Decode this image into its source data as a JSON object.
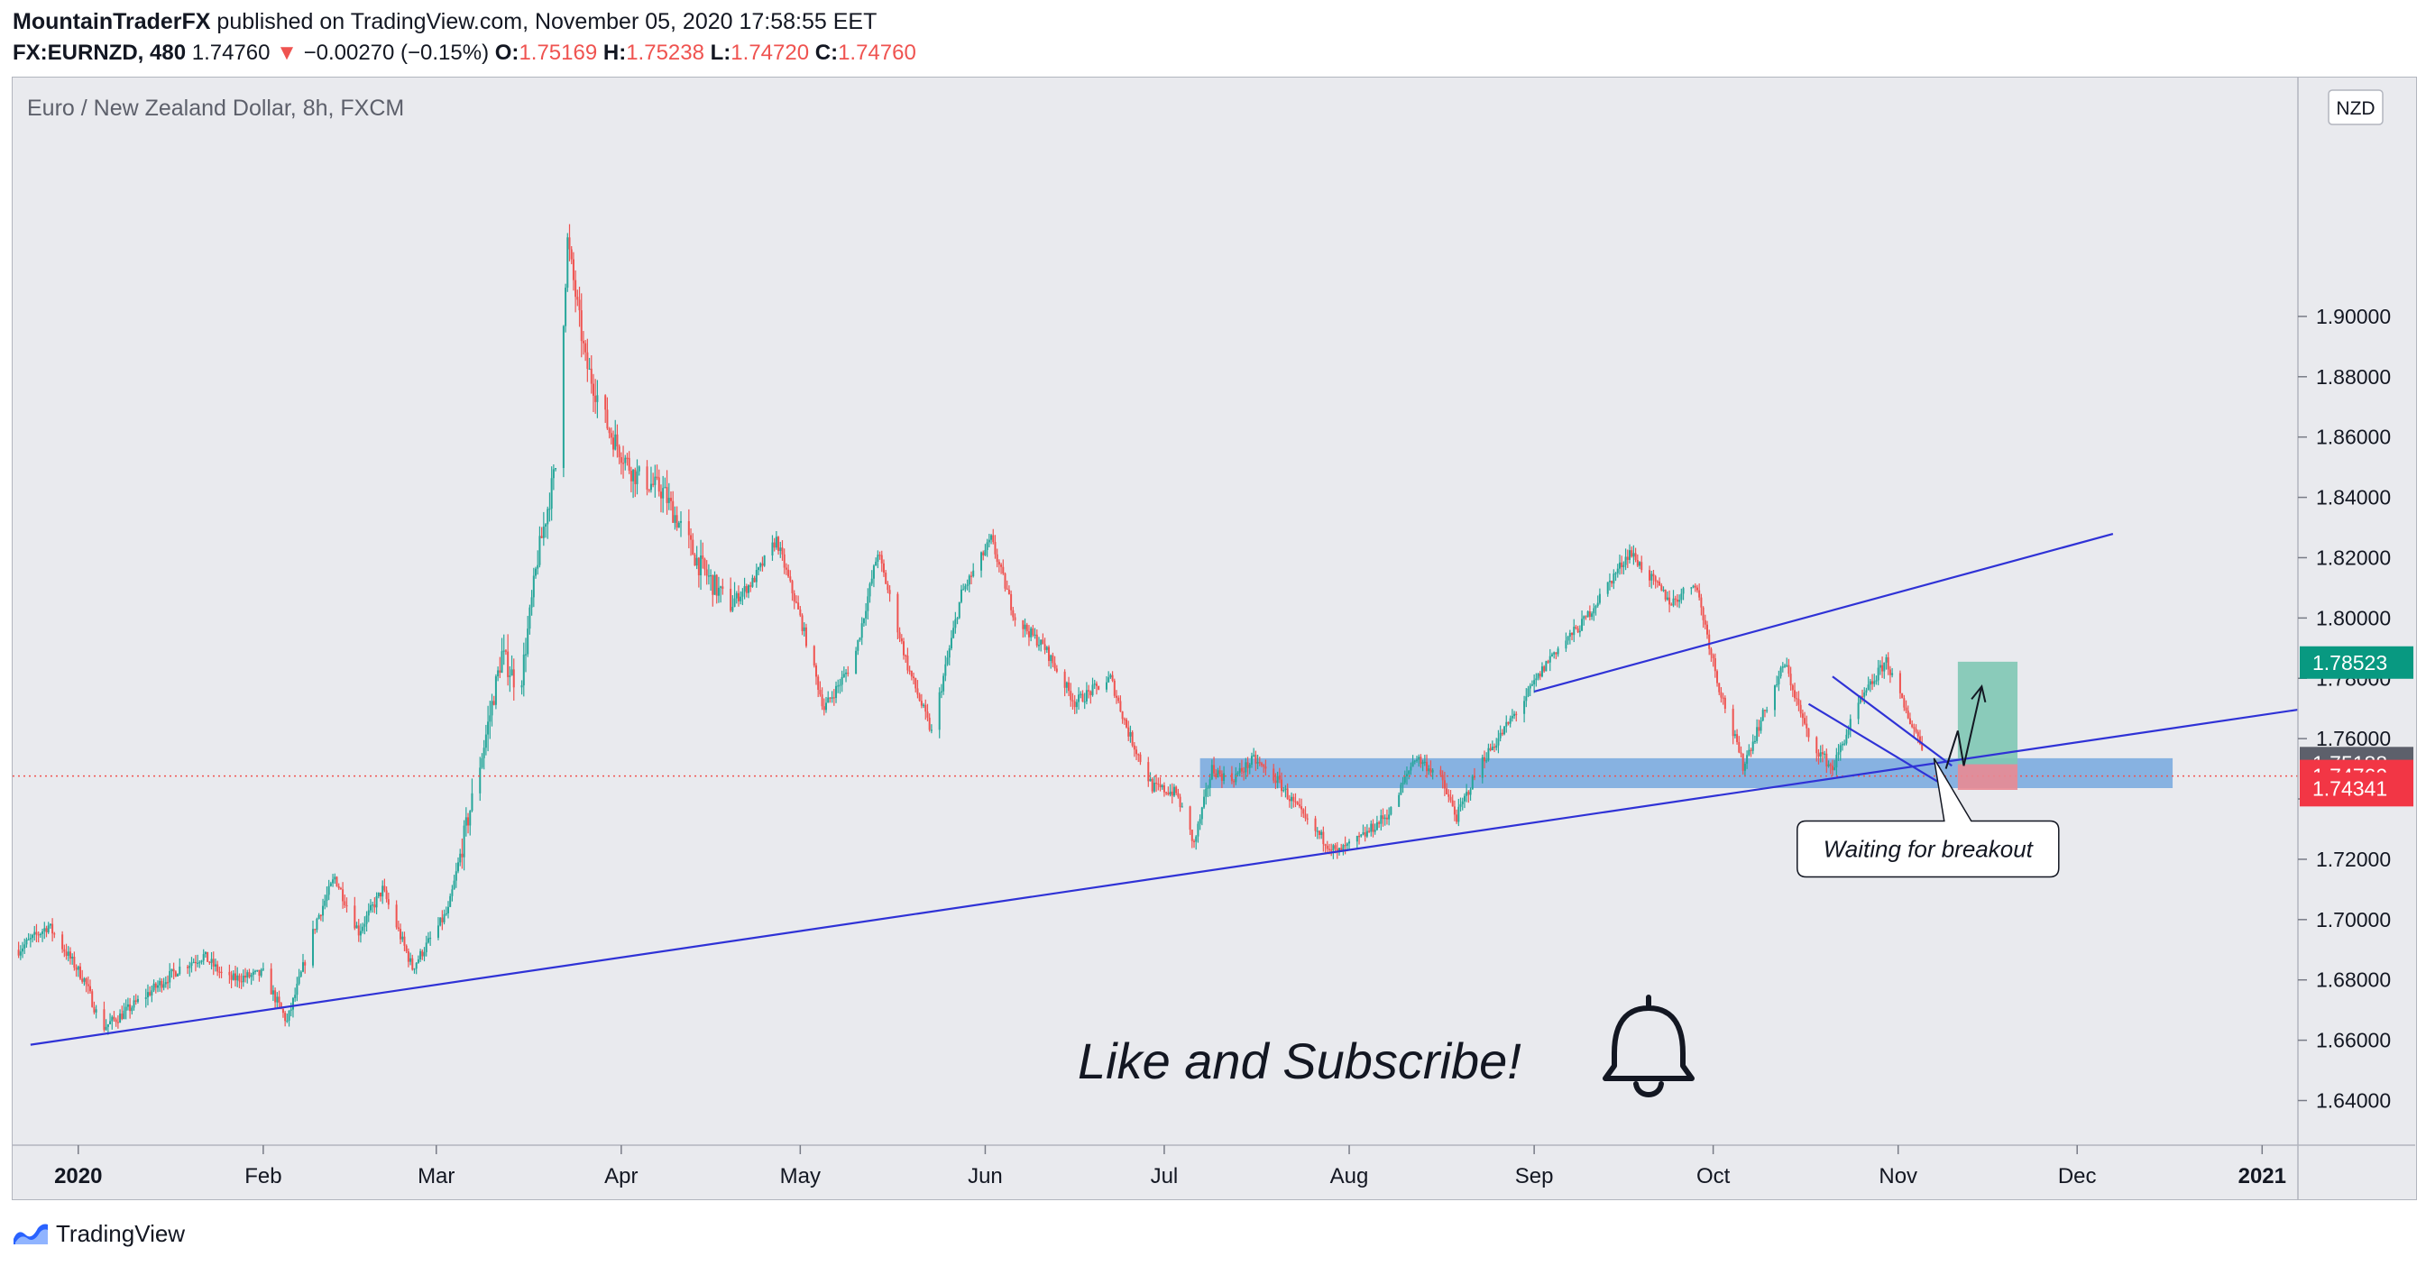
{
  "header": {
    "author": "MountainTraderFX",
    "published_text": "published on TradingView.com, November 05, 2020 17:58:55 EET",
    "symbol": "FX:EURNZD, 480",
    "last": "1.74760",
    "change_arrow": "▼",
    "change": "−0.00270 (−0.15%)",
    "open_label": "O:",
    "open": "1.75169",
    "high_label": "H:",
    "high": "1.75238",
    "low_label": "L:",
    "low": "1.74720",
    "close_label": "C:",
    "close": "1.74760"
  },
  "footer": {
    "brand": "TradingView",
    "logo_icon": "tradingview-logo-icon"
  },
  "chart_data": {
    "type": "candlestick",
    "title": "Euro / New Zealand Dollar, 8h, FXCM",
    "currency_badge": "NZD",
    "y_ticks": [
      "1.90000",
      "1.88000",
      "1.86000",
      "1.84000",
      "1.82000",
      "1.80000",
      "1.78000",
      "1.76000",
      "1.74000",
      "1.72000",
      "1.70000",
      "1.68000",
      "1.66000",
      "1.64000"
    ],
    "y_tick_values": [
      1.9,
      1.88,
      1.86,
      1.84,
      1.82,
      1.8,
      1.78,
      1.76,
      1.74,
      1.72,
      1.7,
      1.68,
      1.66,
      1.64
    ],
    "ylim": [
      1.6252,
      1.9792
    ],
    "x_ticks": [
      "2020",
      "Feb",
      "Mar",
      "Apr",
      "May",
      "Jun",
      "Jul",
      "Aug",
      "Sep",
      "Oct",
      "Nov",
      "Dec",
      "2021"
    ],
    "x_tick_dates": [
      "2020-01-01",
      "2020-02-01",
      "2020-03-01",
      "2020-04-01",
      "2020-05-01",
      "2020-06-01",
      "2020-07-01",
      "2020-08-01",
      "2020-09-01",
      "2020-10-01",
      "2020-11-01",
      "2020-12-01",
      "2021-01-01"
    ],
    "xlim": [
      "2019-12-21",
      "2021-01-07"
    ],
    "price_path": [
      [
        "2019-12-22",
        1.69
      ],
      [
        "2019-12-27",
        1.698
      ],
      [
        "2020-01-02",
        1.68
      ],
      [
        "2020-01-05",
        1.664
      ],
      [
        "2020-01-08",
        1.668
      ],
      [
        "2020-01-13",
        1.676
      ],
      [
        "2020-01-18",
        1.684
      ],
      [
        "2020-01-22",
        1.688
      ],
      [
        "2020-01-26",
        1.68
      ],
      [
        "2020-02-01",
        1.682
      ],
      [
        "2020-02-05",
        1.666
      ],
      [
        "2020-02-10",
        1.7
      ],
      [
        "2020-02-13",
        1.714
      ],
      [
        "2020-02-17",
        1.696
      ],
      [
        "2020-02-21",
        1.71
      ],
      [
        "2020-02-26",
        1.684
      ],
      [
        "2020-03-03",
        1.703
      ],
      [
        "2020-03-09",
        1.758
      ],
      [
        "2020-03-12",
        1.788
      ],
      [
        "2020-03-15",
        1.776
      ],
      [
        "2020-03-18",
        1.82
      ],
      [
        "2020-03-21",
        1.85
      ],
      [
        "2020-03-23",
        1.925
      ],
      [
        "2020-03-26",
        1.885
      ],
      [
        "2020-03-30",
        1.862
      ],
      [
        "2020-04-03",
        1.848
      ],
      [
        "2020-04-08",
        1.842
      ],
      [
        "2020-04-14",
        1.818
      ],
      [
        "2020-04-19",
        1.804
      ],
      [
        "2020-04-23",
        1.812
      ],
      [
        "2020-04-27",
        1.826
      ],
      [
        "2020-05-01",
        1.8
      ],
      [
        "2020-05-05",
        1.77
      ],
      [
        "2020-05-10",
        1.786
      ],
      [
        "2020-05-14",
        1.822
      ],
      [
        "2020-05-19",
        1.784
      ],
      [
        "2020-05-23",
        1.762
      ],
      [
        "2020-05-28",
        1.808
      ],
      [
        "2020-06-02",
        1.826
      ],
      [
        "2020-06-06",
        1.8
      ],
      [
        "2020-06-11",
        1.79
      ],
      [
        "2020-06-16",
        1.772
      ],
      [
        "2020-06-22",
        1.78
      ],
      [
        "2020-06-25",
        1.762
      ],
      [
        "2020-06-29",
        1.744
      ],
      [
        "2020-07-03",
        1.742
      ],
      [
        "2020-07-06",
        1.725
      ],
      [
        "2020-07-09",
        1.75
      ],
      [
        "2020-07-12",
        1.746
      ],
      [
        "2020-07-16",
        1.753
      ],
      [
        "2020-07-20",
        1.746
      ],
      [
        "2020-07-25",
        1.732
      ],
      [
        "2020-07-30",
        1.722
      ],
      [
        "2020-08-03",
        1.727
      ],
      [
        "2020-08-08",
        1.736
      ],
      [
        "2020-08-12",
        1.754
      ],
      [
        "2020-08-16",
        1.748
      ],
      [
        "2020-08-19",
        1.734
      ],
      [
        "2020-08-23",
        1.752
      ],
      [
        "2020-08-26",
        1.76
      ],
      [
        "2020-08-31",
        1.775
      ],
      [
        "2020-09-04",
        1.788
      ],
      [
        "2020-09-09",
        1.798
      ],
      [
        "2020-09-13",
        1.81
      ],
      [
        "2020-09-17",
        1.822
      ],
      [
        "2020-09-21",
        1.812
      ],
      [
        "2020-09-24",
        1.805
      ],
      [
        "2020-09-28",
        1.812
      ],
      [
        "2020-10-02",
        1.777
      ],
      [
        "2020-10-06",
        1.751
      ],
      [
        "2020-10-10",
        1.771
      ],
      [
        "2020-10-13",
        1.785
      ],
      [
        "2020-10-17",
        1.76
      ],
      [
        "2020-10-21",
        1.75
      ],
      [
        "2020-10-25",
        1.77
      ],
      [
        "2020-10-30",
        1.786
      ],
      [
        "2020-11-02",
        1.77
      ],
      [
        "2020-11-07",
        1.75
      ],
      [
        "2020-11-11",
        1.782
      ],
      [
        "2020-11-14",
        1.795
      ],
      [
        "2020-11-18",
        1.773
      ],
      [
        "2020-11-21",
        1.762
      ],
      [
        "2020-11-25",
        1.768
      ],
      [
        "2020-11-28",
        1.795
      ],
      [
        "2020-12-01",
        1.78
      ],
      [
        "2020-12-05",
        1.768
      ],
      [
        "2020-12-09",
        1.755
      ]
    ],
    "price_labels": [
      {
        "text": "1.78523",
        "value": 1.78523,
        "color": "#089981"
      },
      {
        "text": "1.75188",
        "value": 1.75188,
        "color": "#5d606b"
      },
      {
        "text": "1.74760",
        "value": 1.7476,
        "color": "#f23645"
      },
      {
        "text": "06:01:07",
        "value": 1.7429,
        "color": "#f23645"
      },
      {
        "text": "1.74341",
        "value": 1.74341,
        "color": "#f23645"
      }
    ],
    "last_price_line": 1.7476,
    "support_zone": {
      "from": "2020-07-07",
      "to": "2020-12-17",
      "low": 1.7436,
      "high": 1.7535,
      "color": "#4a90d9"
    },
    "trendlines": [
      {
        "x1": "2019-12-24",
        "y1": 1.6585,
        "x2": "2021-01-07",
        "y2": 1.7696,
        "color": "#2f32d6"
      },
      {
        "x1": "2020-09-01",
        "y1": 1.7756,
        "x2": "2020-12-07",
        "y2": 1.8279,
        "color": "#2f32d6"
      },
      {
        "x1": "2020-10-17",
        "y1": 1.7715,
        "x2": "2020-11-08",
        "y2": 1.7453,
        "color": "#2f32d6"
      },
      {
        "x1": "2020-10-21",
        "y1": 1.7806,
        "x2": "2020-11-10",
        "y2": 1.751,
        "color": "#2f32d6"
      }
    ],
    "long_position": {
      "from": "2020-11-11",
      "to": "2020-11-21",
      "entry": 1.7515,
      "target": 1.7855,
      "stop": 1.743,
      "profit_color": "#7fc8b4",
      "loss_color": "#e98a93"
    },
    "forecast_path": [
      [
        "2020-11-09",
        1.75
      ],
      [
        "2020-11-11",
        1.7626
      ],
      [
        "2020-11-12",
        1.751
      ],
      [
        "2020-11-15",
        1.7773
      ]
    ],
    "annotation": {
      "text": "Waiting for breakout",
      "date": "2020-11-06",
      "value": 1.7234,
      "pointer_date": "2020-11-07",
      "pointer_value": 1.7535
    },
    "caption": {
      "text": "Like and Subscribe!",
      "icon": "bell-icon"
    },
    "grid": false,
    "legend": "none",
    "colors": {
      "up": "#26a69a",
      "down": "#ef5350",
      "background": "#e9eaee"
    }
  }
}
